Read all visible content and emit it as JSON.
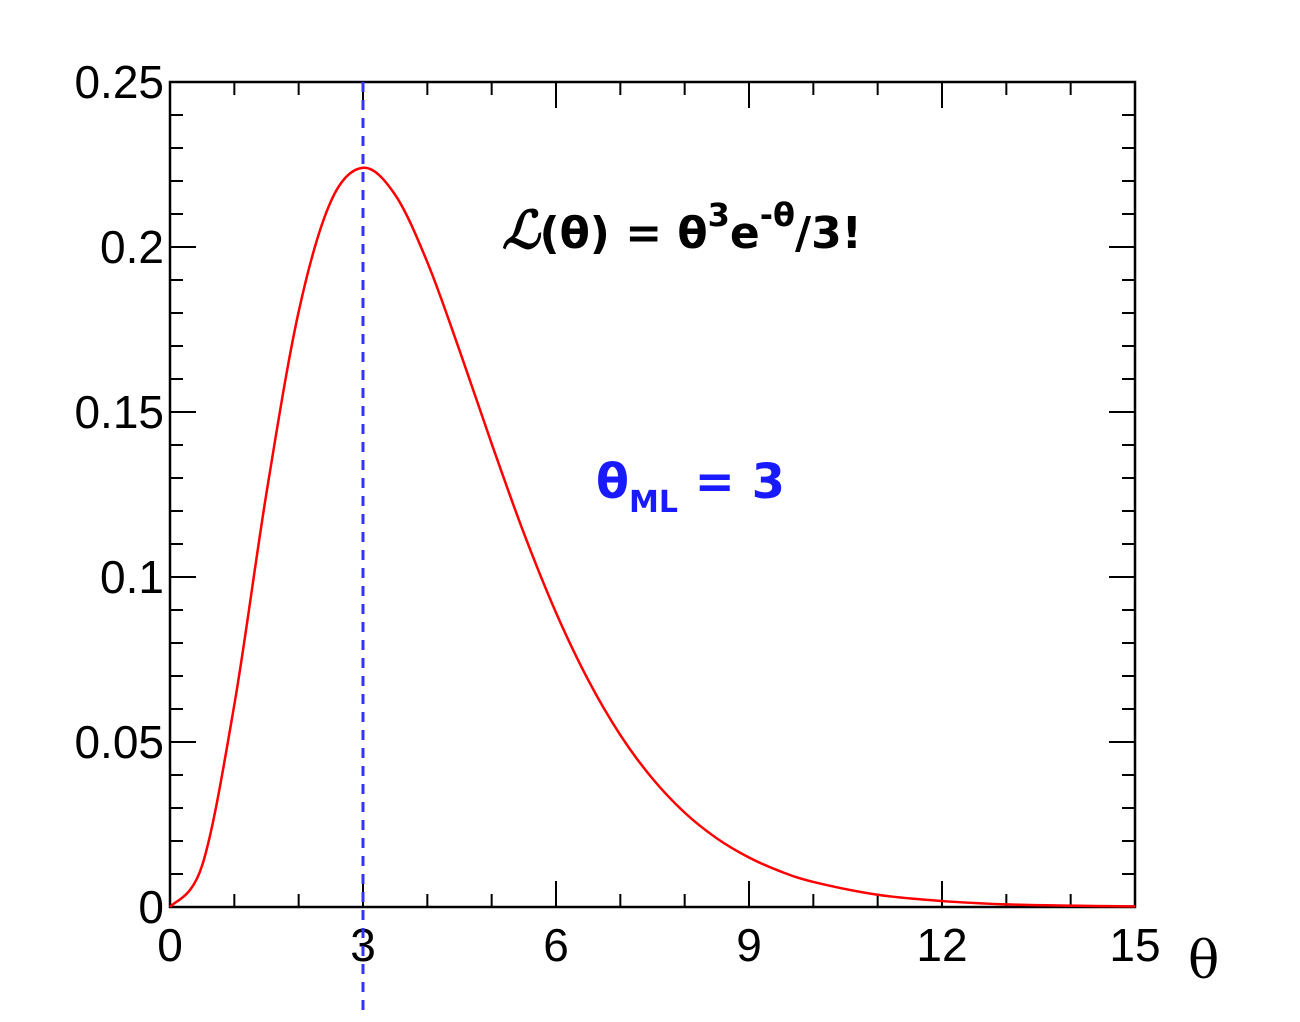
{
  "chart_data": {
    "type": "line",
    "title": "",
    "xlabel": "θ",
    "ylabel": "",
    "xlim": [
      0,
      15
    ],
    "ylim": [
      0,
      0.25
    ],
    "grid": false,
    "xticks": [
      0,
      3,
      6,
      9,
      12,
      15
    ],
    "xtick_labels": [
      "0",
      "3",
      "6",
      "9",
      "12",
      "15"
    ],
    "yticks": [
      0,
      0.05,
      0.1,
      0.15,
      0.2,
      0.25
    ],
    "ytick_labels": [
      "0",
      "0.05",
      "0.1",
      "0.15",
      "0.2",
      "0.25"
    ],
    "series": [
      {
        "color": "#ff0000",
        "x": [
          0,
          0.5,
          1,
          1.5,
          2,
          2.5,
          3,
          3.5,
          4,
          4.5,
          5,
          5.5,
          6,
          6.5,
          7,
          7.5,
          8,
          8.5,
          9,
          9.5,
          10,
          11,
          12,
          13,
          14,
          15
        ],
        "y": [
          0,
          0.0126,
          0.0613,
          0.1255,
          0.1804,
          0.2138,
          0.224,
          0.2158,
          0.1954,
          0.1687,
          0.1404,
          0.1133,
          0.0892,
          0.0688,
          0.0521,
          0.0389,
          0.0286,
          0.0208,
          0.015,
          0.0107,
          0.0076,
          0.0037,
          0.0018,
          0.0008,
          0.0004,
          0.0002
        ]
      }
    ],
    "vline": {
      "x": 3,
      "color": "#3333ff",
      "style": "dashed"
    },
    "annotations": {
      "formula": {
        "script_l": "ℒ",
        "left": "(θ) = θ",
        "exp1": "3",
        "mid": "e",
        "exp2": "-θ",
        "right": "/3!"
      },
      "ml": {
        "theta": "θ",
        "sub": "ML",
        "eq": " = 3",
        "color": "#1a1aff"
      }
    }
  }
}
